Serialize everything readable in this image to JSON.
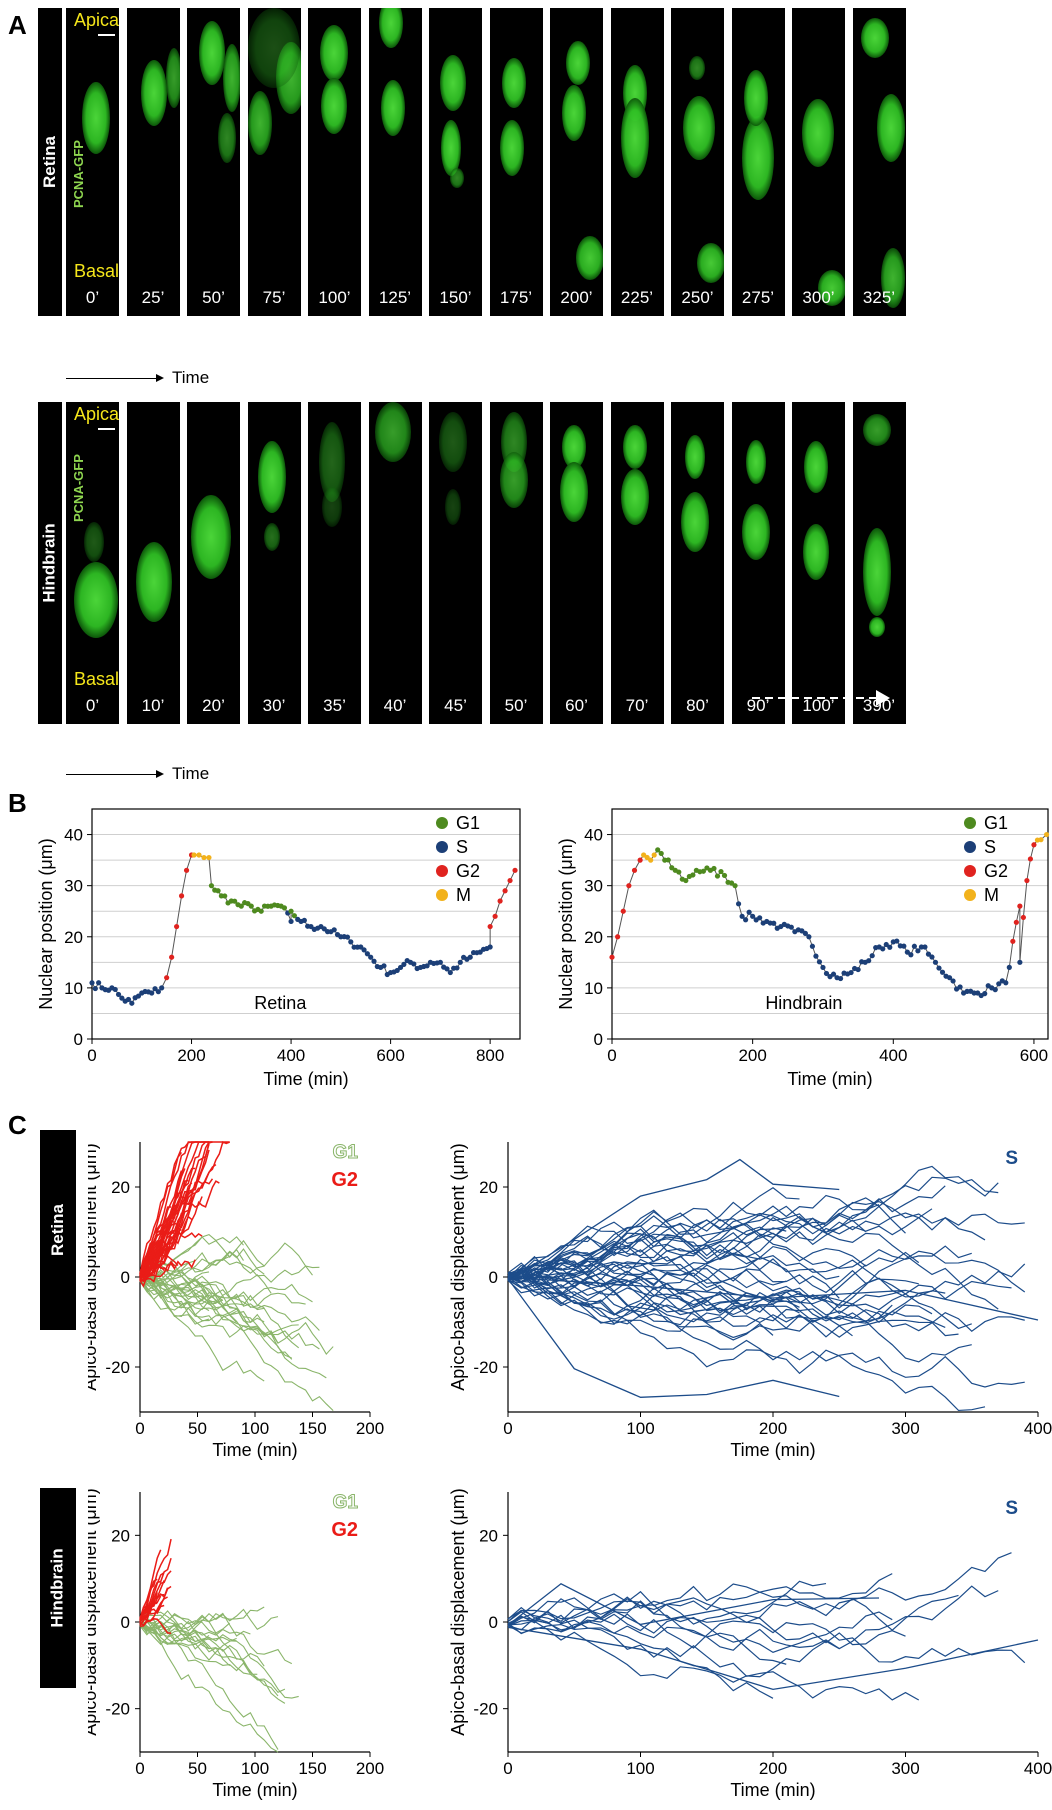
{
  "panel_letters": {
    "a": "A",
    "b": "B",
    "c": "C"
  },
  "panel_a": {
    "retina": {
      "row_label": "Retina",
      "apical": "Apical",
      "basal": "Basal",
      "marker": "PCNA-GFP",
      "times": [
        "0’",
        "25’",
        "50’",
        "75’",
        "100’",
        "125’",
        "150’",
        "175’",
        "200’",
        "225’",
        "250’",
        "275’",
        "300’",
        "325’"
      ],
      "time_axis": "Time"
    },
    "hindbrain": {
      "row_label": "Hindbrain",
      "apical": "Apical",
      "basal": "Basal",
      "marker": "PCNA-GFP",
      "times": [
        "0’",
        "10’",
        "20’",
        "30’",
        "35’",
        "40’",
        "45’",
        "50’",
        "60’",
        "70’",
        "80’",
        "90’",
        "100’",
        "390’"
      ],
      "time_axis": "Time"
    },
    "colors": {
      "nucleus": "#2fbf24",
      "label_yellow": "#f5e61a",
      "marker_green": "#8fd650"
    }
  },
  "panel_b": {
    "legend": [
      "G1",
      "S",
      "G2",
      "M"
    ],
    "phase_colors": {
      "G1": "#4e8a1f",
      "S": "#1c3f77",
      "G2": "#e0231f",
      "M": "#f2b21c"
    },
    "ylabel": "Nuclear position (μm)",
    "xlabel": "Time (min)",
    "retina_tag": "Retina",
    "hindbrain_tag": "Hindbrain"
  },
  "panel_c": {
    "row_labels": [
      "Retina",
      "Hindbrain"
    ],
    "ylabel": "Apico-basal displacement (μm)",
    "xlabel": "Time (min)",
    "legend_g1": "G1",
    "legend_g2": "G2",
    "legend_s": "S",
    "colors": {
      "G1": "#8ab56a",
      "G2": "#ea1c17",
      "S": "#1c4c8a"
    }
  },
  "chart_data": [
    {
      "type": "scatter",
      "panel": "B-left",
      "xlabel": "Time (min)",
      "ylabel": "Nuclear position (μm)",
      "xlim": [
        0,
        860
      ],
      "ylim": [
        0,
        45
      ],
      "xticks": [
        0,
        200,
        400,
        600,
        800
      ],
      "yticks": [
        0,
        10,
        20,
        30,
        40
      ],
      "grid": true,
      "legend_position": "top-right",
      "annotation": "Retina",
      "series": [
        {
          "name": "S",
          "x": [
            0,
            20,
            40,
            60,
            80,
            100,
            120,
            140,
            400,
            420,
            440,
            460,
            480,
            500,
            520,
            540,
            560,
            580,
            600,
            620,
            640,
            660,
            680,
            700,
            720,
            740,
            760,
            780,
            800
          ],
          "y": [
            11,
            10,
            10,
            8,
            7,
            9,
            9,
            10,
            23,
            23,
            22,
            22,
            21,
            20,
            19,
            18,
            16,
            14,
            13,
            14,
            15,
            14,
            15,
            15,
            13,
            15,
            16,
            17,
            18
          ]
        },
        {
          "name": "G2",
          "x": [
            150,
            160,
            170,
            180,
            190,
            200,
            800,
            810,
            820,
            830,
            840,
            850
          ],
          "y": [
            12,
            16,
            22,
            28,
            33,
            36,
            22,
            24,
            27,
            29,
            31,
            33
          ]
        },
        {
          "name": "M",
          "x": [
            205,
            215,
            225,
            235
          ],
          "y": [
            36,
            36,
            35.5,
            35.5
          ]
        },
        {
          "name": "G1",
          "x": [
            240,
            260,
            280,
            300,
            320,
            340,
            360,
            380,
            400
          ],
          "y": [
            30,
            28,
            27,
            26,
            26,
            25,
            26,
            26,
            25
          ]
        }
      ]
    },
    {
      "type": "scatter",
      "panel": "B-right",
      "xlabel": "Time (min)",
      "ylabel": "Nuclear position (μm)",
      "xlim": [
        0,
        620
      ],
      "ylim": [
        0,
        45
      ],
      "xticks": [
        0,
        200,
        400,
        600
      ],
      "yticks": [
        0,
        10,
        20,
        30,
        40
      ],
      "grid": true,
      "legend_position": "top-right",
      "annotation": "Hindbrain",
      "series": [
        {
          "name": "G2",
          "x": [
            0,
            8,
            16,
            24,
            32,
            40,
            580,
            590,
            600
          ],
          "y": [
            16,
            20,
            25,
            30,
            33,
            35,
            26,
            31,
            38
          ]
        },
        {
          "name": "M",
          "x": [
            45,
            55,
            60,
            610,
            618
          ],
          "y": [
            36,
            35,
            36,
            39,
            40
          ]
        },
        {
          "name": "G1",
          "x": [
            65,
            75,
            90,
            105,
            120,
            140,
            160,
            175
          ],
          "y": [
            37,
            35,
            33,
            31,
            33,
            33,
            32,
            30
          ]
        },
        {
          "name": "S",
          "x": [
            185,
            200,
            220,
            240,
            260,
            280,
            300,
            320,
            340,
            360,
            380,
            400,
            420,
            440,
            460,
            480,
            500,
            520,
            540,
            560,
            580
          ],
          "y": [
            24,
            24,
            23,
            22,
            21,
            20,
            14,
            12,
            13,
            15,
            18,
            19,
            17,
            18,
            15,
            12,
            9,
            9,
            10,
            11,
            15
          ]
        }
      ]
    },
    {
      "type": "line",
      "panel": "C-retina-G1G2",
      "xlabel": "Time (min)",
      "ylabel": "Apico-basal displacement (μm)",
      "xlim": [
        0,
        200
      ],
      "ylim": [
        -30,
        30
      ],
      "xticks": [
        0,
        50,
        100,
        150,
        200
      ],
      "yticks": [
        -20,
        0,
        20
      ],
      "legend_position": "top-right",
      "series": [
        {
          "name": "G2",
          "x": [
            0,
            20,
            40,
            60,
            80
          ],
          "y": [
            0,
            10,
            18,
            22,
            25
          ]
        },
        {
          "name": "G2",
          "x": [
            0,
            15,
            30,
            45
          ],
          "y": [
            0,
            6,
            12,
            16
          ]
        },
        {
          "name": "G1",
          "x": [
            0,
            50,
            100,
            150
          ],
          "y": [
            0,
            -6,
            -10,
            -30
          ]
        },
        {
          "name": "G1",
          "x": [
            0,
            60,
            120,
            180
          ],
          "y": [
            0,
            -3,
            -5,
            -7
          ]
        }
      ]
    },
    {
      "type": "line",
      "panel": "C-retina-S",
      "xlabel": "Time (min)",
      "ylabel": "Apico-basal displacement (μm)",
      "xlim": [
        0,
        400
      ],
      "ylim": [
        -30,
        30
      ],
      "xticks": [
        0,
        100,
        200,
        300,
        400
      ],
      "yticks": [
        -20,
        0,
        20
      ],
      "legend_position": "top-right",
      "series": [
        {
          "name": "S",
          "x": [
            0,
            50,
            100,
            150,
            175,
            200,
            250
          ],
          "y": [
            0,
            8,
            17,
            22,
            27,
            20,
            18
          ]
        },
        {
          "name": "S",
          "x": [
            0,
            50,
            100,
            150,
            200,
            250
          ],
          "y": [
            0,
            -20,
            -28,
            -27,
            -22,
            -26
          ]
        },
        {
          "name": "S",
          "x": [
            0,
            100,
            200,
            300,
            400
          ],
          "y": [
            0,
            -3,
            -5,
            -4,
            -10
          ]
        }
      ]
    },
    {
      "type": "line",
      "panel": "C-hindbrain-G1G2",
      "xlabel": "Time (min)",
      "ylabel": "Apico-basal displacement (μm)",
      "xlim": [
        0,
        200
      ],
      "ylim": [
        -30,
        30
      ],
      "xticks": [
        0,
        50,
        100,
        150,
        200
      ],
      "yticks": [
        -20,
        0,
        20
      ],
      "legend_position": "top-right",
      "series": [
        {
          "name": "G2",
          "x": [
            0,
            10,
            20,
            28
          ],
          "y": [
            0,
            10,
            18,
            21
          ]
        },
        {
          "name": "G1",
          "x": [
            0,
            40,
            90
          ],
          "y": [
            0,
            -10,
            -23
          ]
        },
        {
          "name": "G1",
          "x": [
            0,
            70,
            140
          ],
          "y": [
            0,
            -5,
            -11
          ]
        }
      ]
    },
    {
      "type": "line",
      "panel": "C-hindbrain-S",
      "xlabel": "Time (min)",
      "ylabel": "Apico-basal displacement (μm)",
      "xlim": [
        0,
        400
      ],
      "ylim": [
        -30,
        30
      ],
      "xticks": [
        0,
        100,
        200,
        300,
        400
      ],
      "yticks": [
        -20,
        0,
        20
      ],
      "legend_position": "top-right",
      "series": [
        {
          "name": "S",
          "x": [
            0,
            40,
            100,
            200,
            280
          ],
          "y": [
            0,
            10,
            -2,
            5,
            6
          ]
        },
        {
          "name": "S",
          "x": [
            0,
            100,
            200,
            300,
            400
          ],
          "y": [
            0,
            -6,
            -16,
            -12,
            -4
          ]
        }
      ]
    }
  ]
}
